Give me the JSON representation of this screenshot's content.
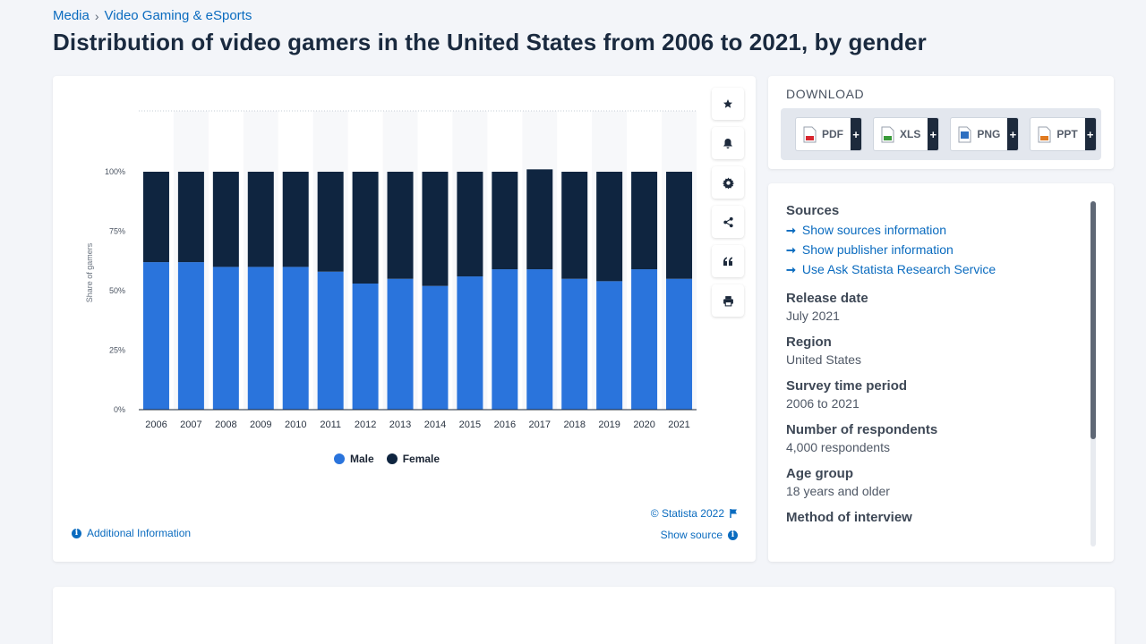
{
  "breadcrumb": {
    "items": [
      "Media",
      "Video Gaming & eSports"
    ],
    "separator": "›"
  },
  "page_title": "Distribution of video gamers in the United States from 2006 to 2021, by gender",
  "toolbar": {
    "buttons": [
      "star-icon",
      "bell-icon",
      "gear-icon",
      "share-icon",
      "quote-icon",
      "print-icon"
    ]
  },
  "chart_data": {
    "type": "bar",
    "stacked": true,
    "title": "",
    "xlabel": "",
    "ylabel": "Share of gamers",
    "ylim": [
      0,
      100
    ],
    "yticks": [
      "0%",
      "25%",
      "50%",
      "75%",
      "100%"
    ],
    "grid": "dotted line above 100%",
    "legend_position": "bottom-center",
    "categories": [
      "2006",
      "2007",
      "2008",
      "2009",
      "2010",
      "2011",
      "2012",
      "2013",
      "2014",
      "2015",
      "2016",
      "2017",
      "2018",
      "2019",
      "2020",
      "2021"
    ],
    "series": [
      {
        "name": "Male",
        "color": "#2a74dc",
        "values": [
          62,
          62,
          60,
          60,
          60,
          58,
          53,
          55,
          52,
          56,
          59,
          59,
          55,
          54,
          59,
          55
        ]
      },
      {
        "name": "Female",
        "color": "#0f2540",
        "values": [
          38,
          38,
          40,
          40,
          40,
          42,
          47,
          45,
          48,
          44,
          41,
          42,
          45,
          46,
          41,
          45
        ]
      }
    ]
  },
  "chart_footer": {
    "copyright": "© Statista 2022",
    "show_source": "Show source",
    "additional_info": "Additional Information"
  },
  "download": {
    "title": "DOWNLOAD",
    "buttons": [
      {
        "label": "PDF",
        "color": "#d8262f"
      },
      {
        "label": "XLS",
        "color": "#3a9b3a"
      },
      {
        "label": "PNG",
        "color": "#2e6fc0"
      },
      {
        "label": "PPT",
        "color": "#e07a20"
      }
    ],
    "plus": "+"
  },
  "info": {
    "sources_heading": "Sources",
    "source_links": [
      "Show sources information",
      "Show publisher information",
      "Use Ask Statista Research Service"
    ],
    "fields": [
      {
        "label": "Release date",
        "value": "July 2021"
      },
      {
        "label": "Region",
        "value": "United States"
      },
      {
        "label": "Survey time period",
        "value": "2006 to 2021"
      },
      {
        "label": "Number of respondents",
        "value": "4,000 respondents"
      },
      {
        "label": "Age group",
        "value": "18 years and older"
      },
      {
        "label": "Method of interview",
        "value": ""
      }
    ]
  }
}
